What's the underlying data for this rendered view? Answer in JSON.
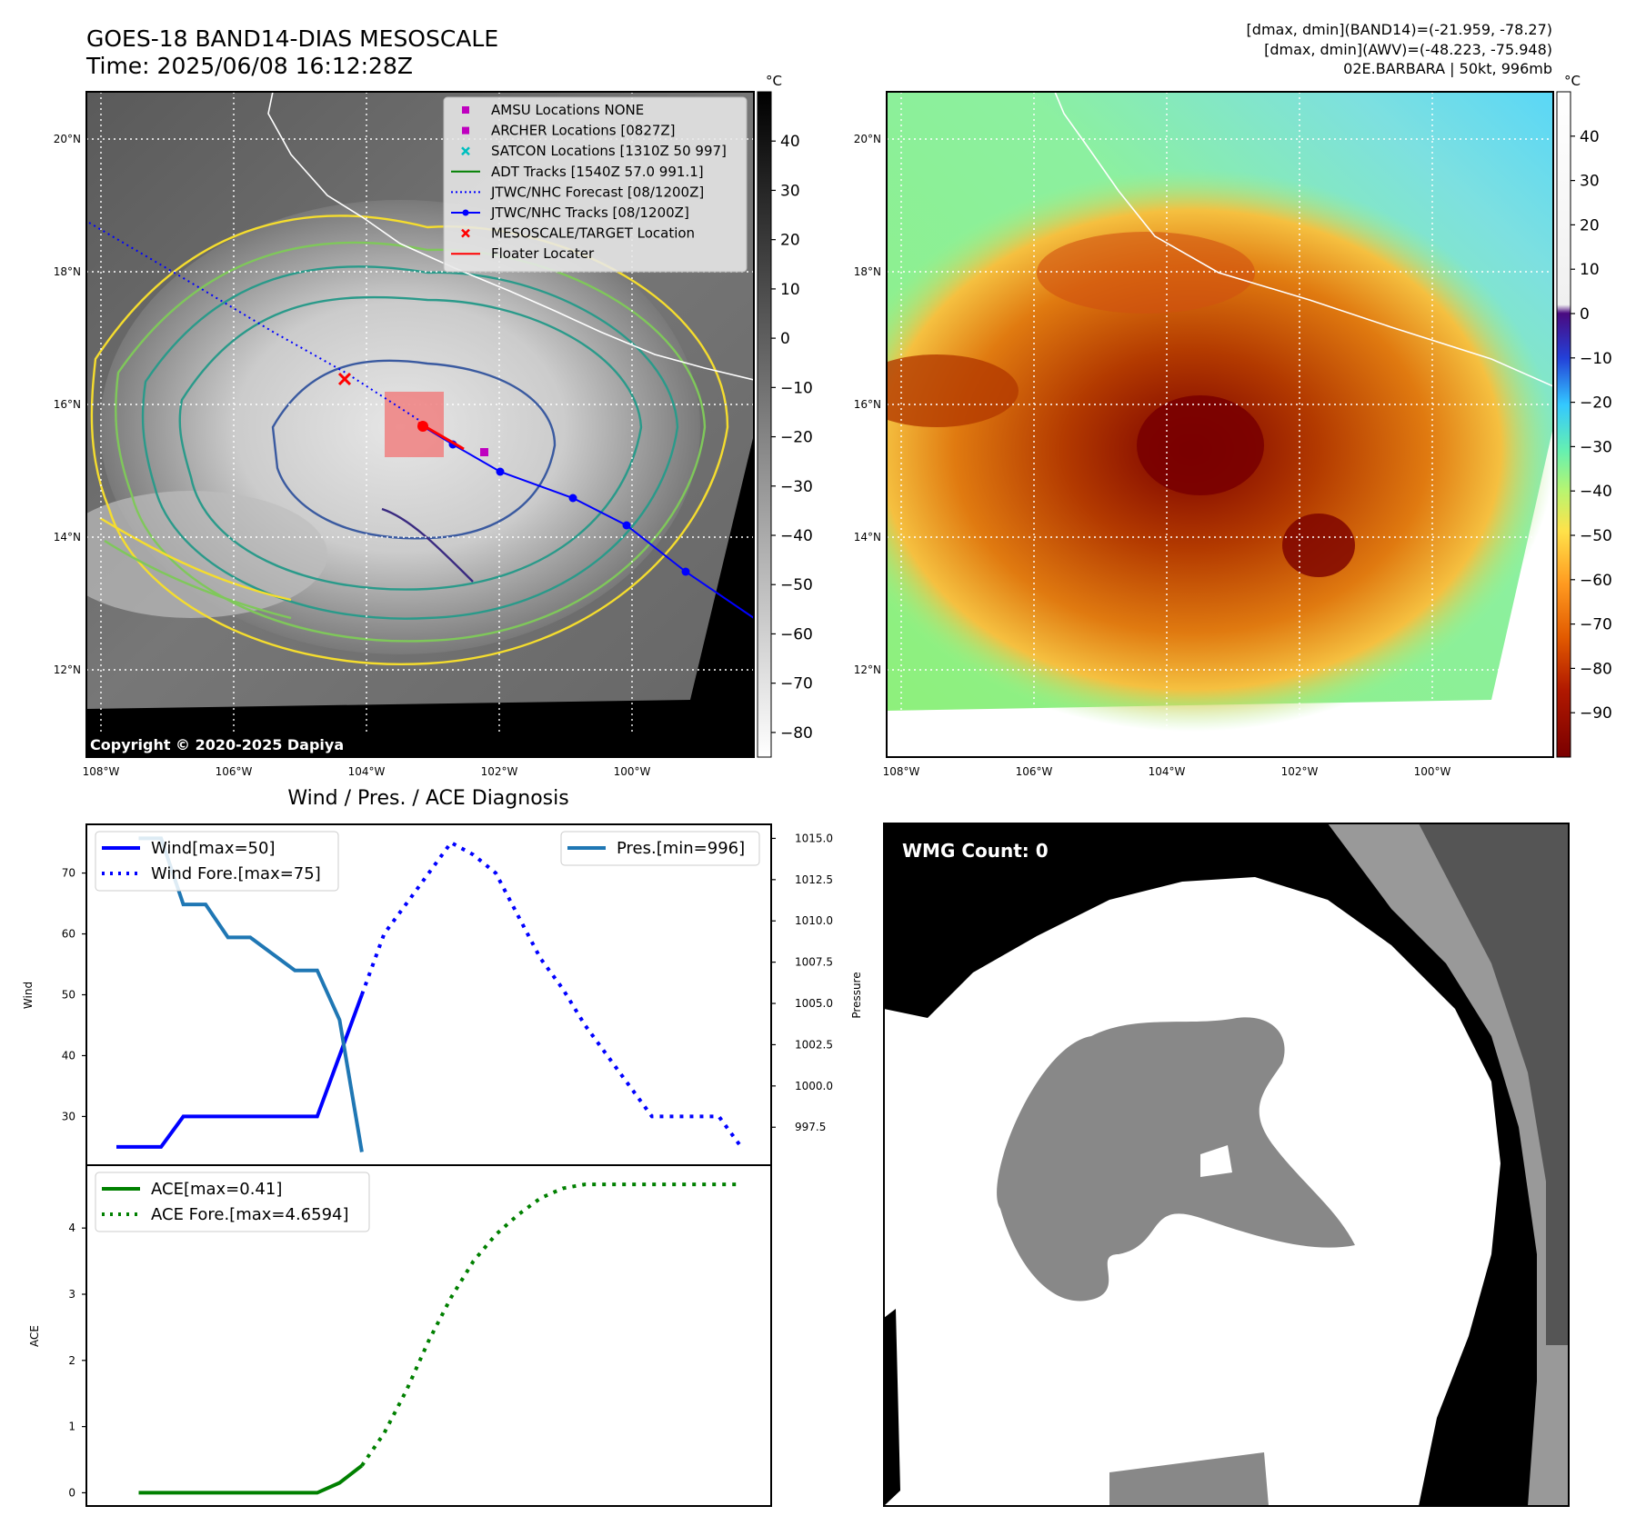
{
  "header": {
    "title_line1": "GOES-18 BAND14-DIAS MESOSCALE",
    "title_line2": "Time: 2025/06/08 16:12:28Z",
    "right_line1": "[dmax, dmin](BAND14)=(-21.959, -78.27)",
    "right_line2": "[dmax, dmin](AWV)=(-48.223, -75.948)",
    "right_line3": "02E.BARBARA | 50kt, 996mb"
  },
  "map_axes": {
    "lon_labels": [
      "108°W",
      "106°W",
      "104°W",
      "102°W",
      "100°W"
    ],
    "lat_labels": [
      "20°N",
      "18°N",
      "16°N",
      "14°N",
      "12°N"
    ],
    "lon_values": [
      -108,
      -106,
      -104,
      -102,
      -100
    ],
    "lat_values": [
      20,
      18,
      16,
      14,
      12
    ]
  },
  "panel_ir": {
    "legend": [
      {
        "label": "AMSU Locations NONE",
        "marker": "square",
        "color": "#bf00bf"
      },
      {
        "label": "ARCHER Locations [0827Z]",
        "marker": "square",
        "color": "#bf00bf"
      },
      {
        "label": "SATCON Locations [1310Z 50 997]",
        "marker": "x",
        "color": "#00bfbf"
      },
      {
        "label": "ADT Tracks [1540Z 57.0 991.1]",
        "marker": "line",
        "color": "#008000"
      },
      {
        "label": "JTWC/NHC Forecast [08/1200Z]",
        "marker": "dotted",
        "color": "#0000ff"
      },
      {
        "label": "JTWC/NHC Tracks [08/1200Z]",
        "marker": "line-dot",
        "color": "#0000ff"
      },
      {
        "label": "MESOSCALE/TARGET Location",
        "marker": "x",
        "color": "#ff0000"
      },
      {
        "label": "Floater Locater",
        "marker": "line",
        "color": "#ff0000"
      }
    ],
    "copyright": "Copyright © 2020-2025 Dapiya",
    "colorbar_unit": "°C",
    "colorbar_ticks": [
      "40",
      "30",
      "20",
      "10",
      "0",
      "−10",
      "−20",
      "−30",
      "−40",
      "−50",
      "−60",
      "−70",
      "−80"
    ],
    "colorbar_values": [
      40,
      30,
      20,
      10,
      0,
      -10,
      -20,
      -30,
      -40,
      -50,
      -60,
      -70,
      -80
    ],
    "colorbar_range": [
      -85,
      50
    ]
  },
  "panel_awv": {
    "colorbar_unit": "°C",
    "colorbar_ticks": [
      "40",
      "30",
      "20",
      "10",
      "0",
      "−10",
      "−20",
      "−30",
      "−40",
      "−50",
      "−60",
      "−70",
      "−80",
      "−90"
    ],
    "colorbar_values": [
      40,
      30,
      20,
      10,
      0,
      -10,
      -20,
      -30,
      -40,
      -50,
      -60,
      -70,
      -80,
      -90
    ],
    "colorbar_range": [
      -100,
      50
    ]
  },
  "panel_wmg": {
    "label": "WMG Count: 0"
  },
  "chart_data": [
    {
      "type": "line",
      "title": "Wind / Pres. / ACE Diagnosis",
      "ylabel": "Wind",
      "y2label": "Pressure",
      "ylim": [
        22,
        78
      ],
      "y2lim": [
        995.2,
        1015.85
      ],
      "yticks": [
        30,
        40,
        50,
        60,
        70
      ],
      "y2ticks": [
        "997.5",
        "1000.0",
        "1002.5",
        "1005.0",
        "1007.5",
        "1010.0",
        "1012.5",
        "1015.0"
      ],
      "x_step_index": [
        0,
        28
      ],
      "series": [
        {
          "name": "Wind[max=50]",
          "axis": "left",
          "style": "solid",
          "color": "#0000ff",
          "x": [
            0,
            1,
            2,
            3,
            4,
            5,
            6,
            7,
            8,
            9,
            10,
            11
          ],
          "y": [
            25,
            25,
            25,
            30,
            30,
            30,
            30,
            30,
            30,
            30,
            40,
            50
          ]
        },
        {
          "name": "Wind Fore.[max=75]",
          "axis": "left",
          "style": "dotted",
          "color": "#0000ff",
          "x": [
            11,
            12,
            13,
            14,
            15,
            16,
            17,
            18,
            19,
            20,
            21,
            22,
            23,
            24,
            25,
            26,
            27,
            28
          ],
          "y": [
            50,
            60,
            65,
            70,
            75,
            73,
            70,
            63,
            56,
            51,
            45,
            40,
            35,
            30,
            30,
            30,
            30,
            25
          ]
        },
        {
          "name": "Pres.[min=996]",
          "axis": "right",
          "style": "solid",
          "color": "#1f77b4",
          "x": [
            1,
            2,
            3,
            4,
            5,
            6,
            7,
            8,
            9,
            10,
            11
          ],
          "y": [
            1015,
            1015,
            1011,
            1011,
            1009,
            1009,
            1008,
            1007,
            1007,
            1004,
            996
          ]
        }
      ]
    },
    {
      "type": "line",
      "ylabel": "ACE",
      "ylim": [
        -0.2,
        4.95
      ],
      "yticks": [
        0,
        1,
        2,
        3,
        4
      ],
      "x_step_index": [
        0,
        28
      ],
      "series": [
        {
          "name": "ACE[max=0.41]",
          "style": "solid",
          "color": "#008000",
          "x": [
            1,
            2,
            3,
            4,
            5,
            6,
            7,
            8,
            9,
            10,
            11
          ],
          "y": [
            0,
            0,
            0,
            0,
            0,
            0,
            0,
            0,
            0,
            0.15,
            0.41
          ]
        },
        {
          "name": "ACE Fore.[max=4.6594]",
          "style": "dotted",
          "color": "#008000",
          "x": [
            11,
            12,
            13,
            14,
            15,
            16,
            17,
            18,
            19,
            20,
            21,
            22,
            23,
            24,
            25,
            26,
            27,
            28
          ],
          "y": [
            0.41,
            0.9,
            1.55,
            2.3,
            2.95,
            3.5,
            3.9,
            4.2,
            4.45,
            4.6,
            4.66,
            4.66,
            4.66,
            4.66,
            4.66,
            4.66,
            4.66,
            4.66
          ]
        }
      ]
    }
  ]
}
